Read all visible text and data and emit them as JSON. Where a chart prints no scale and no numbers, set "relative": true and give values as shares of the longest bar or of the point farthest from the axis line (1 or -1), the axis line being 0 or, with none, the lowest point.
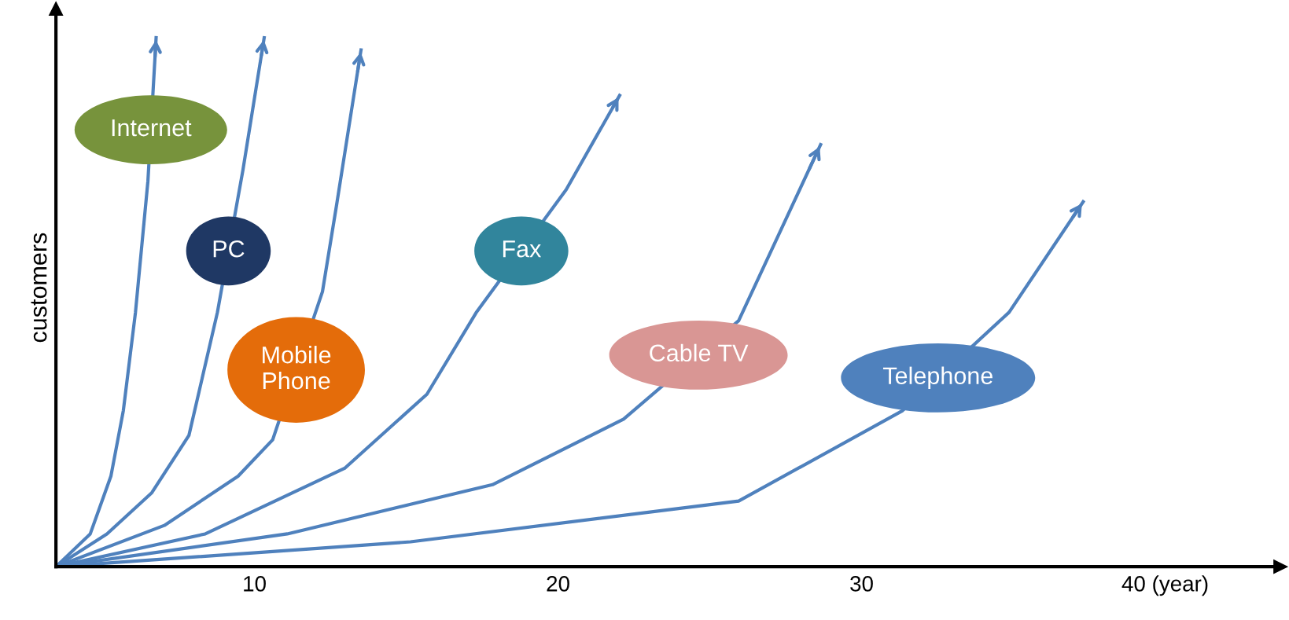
{
  "chart_data": {
    "type": "line",
    "relative": true,
    "ylabel": "customers",
    "xlim": [
      3.46,
      43.8
    ],
    "xticks": [
      10,
      20,
      30,
      {
        "value": 40,
        "label": "40 (year)"
      }
    ],
    "grid": false,
    "legend": false,
    "marker": "none",
    "line_style": "solid",
    "series": [
      {
        "name": "Internet",
        "color": "#4f81bd",
        "x": [
          3.46,
          4.59,
          5.27,
          5.68,
          6.08,
          6.49,
          6.76
        ],
        "values": [
          0,
          0.062,
          0.171,
          0.295,
          0.481,
          0.729,
          1.0
        ]
      },
      {
        "name": "PC",
        "color": "#4f81bd",
        "x": [
          3.46,
          5.14,
          6.62,
          7.84,
          8.78,
          9.62,
          10.32
        ],
        "values": [
          0,
          0.062,
          0.14,
          0.248,
          0.481,
          0.75,
          1.0
        ]
      },
      {
        "name": "Mobile Phone",
        "color": "#4f81bd",
        "x": [
          3.46,
          7.03,
          9.46,
          10.6,
          12.24,
          12.7,
          13.51
        ],
        "values": [
          0,
          0.078,
          0.171,
          0.24,
          0.52,
          0.682,
          0.977
        ]
      },
      {
        "name": "Fax",
        "color": "#4f81bd",
        "x": [
          3.46,
          8.38,
          12.97,
          15.68,
          17.3,
          20.27,
          22.03
        ],
        "values": [
          0,
          0.062,
          0.186,
          0.326,
          0.48,
          0.713,
          0.891
        ]
      },
      {
        "name": "Cable TV",
        "color": "#4f81bd",
        "x": [
          3.46,
          11.08,
          17.84,
          22.16,
          25.95,
          28.65
        ],
        "values": [
          0,
          0.062,
          0.155,
          0.279,
          0.465,
          0.798
        ]
      },
      {
        "name": "Telephone",
        "color": "#4f81bd",
        "x": [
          3.46,
          15.14,
          25.95,
          31.35,
          34.86,
          37.3
        ],
        "values": [
          0,
          0.047,
          0.124,
          0.295,
          0.481,
          0.69
        ]
      }
    ]
  }
}
